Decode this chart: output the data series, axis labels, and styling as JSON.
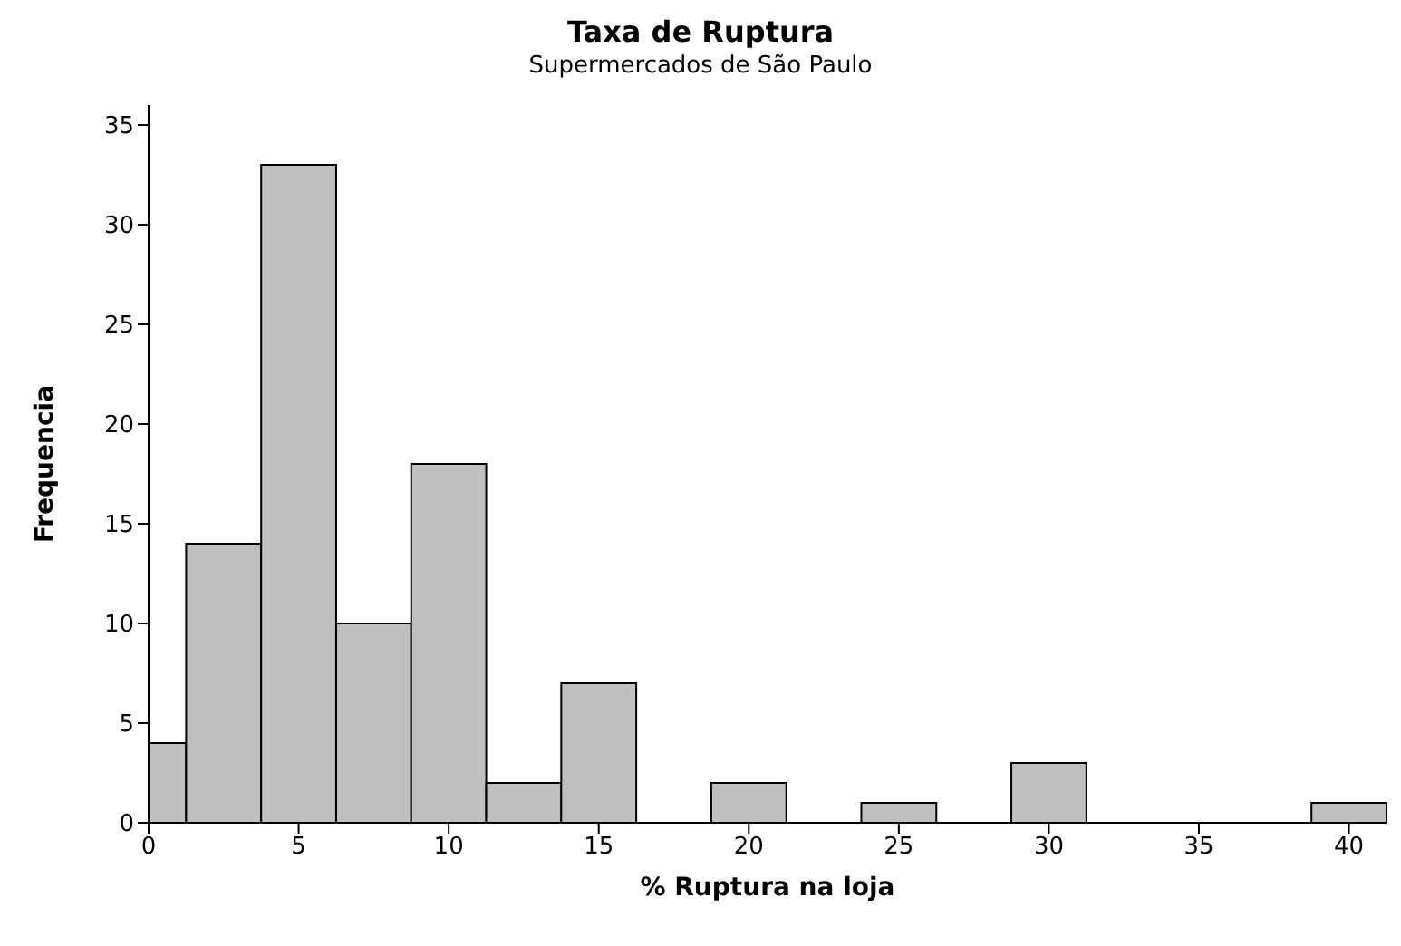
{
  "chart_data": {
    "type": "histogram",
    "title": "Taxa de Ruptura",
    "subtitle": "Supermercados de São Paulo",
    "xlabel": "% Ruptura na loja",
    "ylabel": "Frequencia",
    "bins": [
      -1.25,
      1.25,
      3.75,
      6.25,
      8.75,
      11.25,
      13.75,
      16.25,
      18.75,
      21.25,
      23.75,
      26.25,
      28.75,
      31.25,
      33.75,
      36.25,
      38.75,
      41.25
    ],
    "values": [
      4,
      14,
      33,
      10,
      18,
      2,
      7,
      0,
      2,
      0,
      1,
      0,
      3,
      0,
      0,
      0,
      1
    ],
    "color": "#c0c0c0",
    "xlim": [
      0,
      41.25
    ],
    "xticks": [
      0,
      5,
      10,
      15,
      20,
      25,
      30,
      35,
      40
    ],
    "ylim": [
      0,
      36
    ],
    "yticks": [
      0,
      5,
      10,
      15,
      20,
      25,
      30,
      35
    ],
    "grid": false
  }
}
